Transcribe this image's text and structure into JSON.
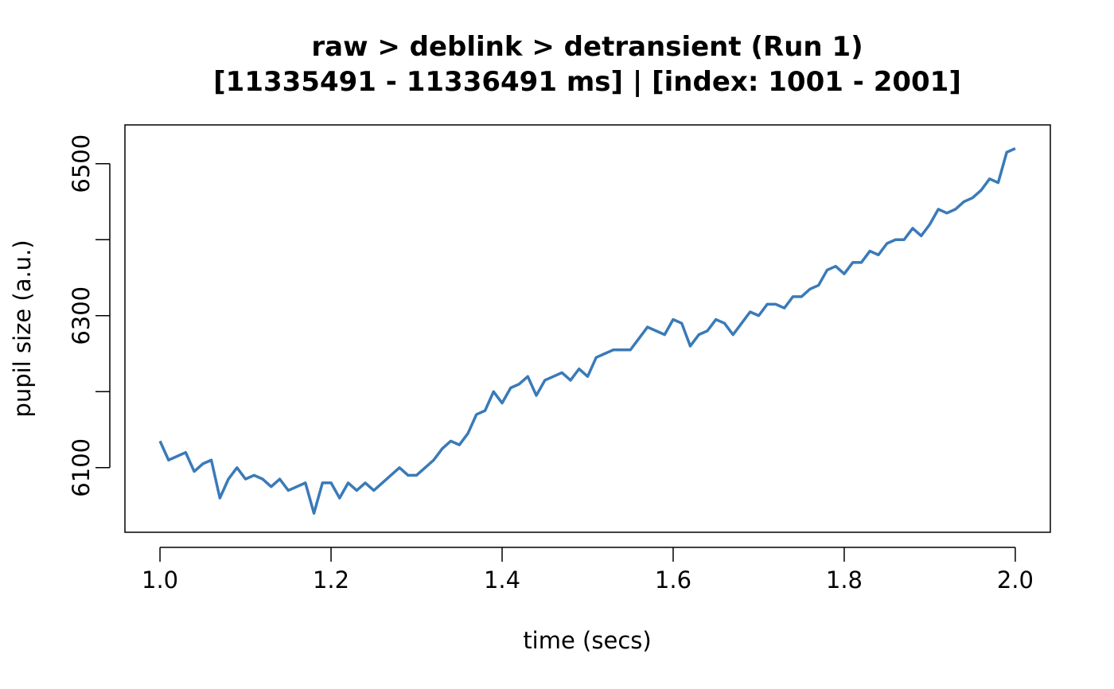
{
  "chart_data": {
    "type": "line",
    "title": "raw > deblink > detransient (Run 1)",
    "subtitle": "[11335491 - 11336491 ms] | [index: 1001 - 2001]",
    "x_label": "time (secs)",
    "y_label": "pupil size (a.u.)",
    "x": [
      1.0,
      1.01,
      1.02,
      1.03,
      1.04,
      1.05,
      1.06,
      1.07,
      1.08,
      1.09,
      1.1,
      1.11,
      1.12,
      1.13,
      1.14,
      1.15,
      1.16,
      1.17,
      1.18,
      1.19,
      1.2,
      1.21,
      1.22,
      1.23,
      1.24,
      1.25,
      1.26,
      1.27,
      1.28,
      1.29,
      1.3,
      1.31,
      1.32,
      1.33,
      1.34,
      1.35,
      1.36,
      1.37,
      1.38,
      1.39,
      1.4,
      1.41,
      1.42,
      1.43,
      1.44,
      1.45,
      1.46,
      1.47,
      1.48,
      1.49,
      1.5,
      1.51,
      1.52,
      1.53,
      1.54,
      1.55,
      1.56,
      1.57,
      1.58,
      1.59,
      1.6,
      1.61,
      1.62,
      1.63,
      1.64,
      1.65,
      1.66,
      1.67,
      1.68,
      1.69,
      1.7,
      1.71,
      1.72,
      1.73,
      1.74,
      1.75,
      1.76,
      1.77,
      1.78,
      1.79,
      1.8,
      1.81,
      1.82,
      1.83,
      1.84,
      1.85,
      1.86,
      1.87,
      1.88,
      1.89,
      1.9,
      1.91,
      1.92,
      1.93,
      1.94,
      1.95,
      1.96,
      1.97,
      1.98,
      1.99,
      2.0
    ],
    "series": [
      {
        "name": "pupil",
        "color": "#3a7ab8",
        "values": [
          6135,
          6110,
          6115,
          6120,
          6095,
          6105,
          6110,
          6060,
          6085,
          6100,
          6085,
          6090,
          6085,
          6075,
          6085,
          6070,
          6075,
          6080,
          6040,
          6080,
          6080,
          6060,
          6080,
          6070,
          6080,
          6070,
          6080,
          6090,
          6100,
          6090,
          6090,
          6100,
          6110,
          6125,
          6135,
          6130,
          6145,
          6170,
          6175,
          6200,
          6185,
          6205,
          6210,
          6220,
          6195,
          6215,
          6220,
          6225,
          6215,
          6230,
          6220,
          6245,
          6250,
          6255,
          6255,
          6255,
          6270,
          6285,
          6280,
          6275,
          6295,
          6290,
          6260,
          6275,
          6280,
          6295,
          6290,
          6275,
          6290,
          6305,
          6300,
          6315,
          6315,
          6310,
          6325,
          6325,
          6335,
          6340,
          6360,
          6365,
          6355,
          6370,
          6370,
          6385,
          6380,
          6395,
          6400,
          6400,
          6415,
          6405,
          6420,
          6440,
          6435,
          6440,
          6450,
          6455,
          6465,
          6480,
          6475,
          6515,
          6520
        ]
      }
    ],
    "xlim": [
      0.959,
      2.041
    ],
    "ylim": [
      6015,
      6551
    ],
    "xticks": [
      {
        "value": 1.0,
        "label": "1.0"
      },
      {
        "value": 1.2,
        "label": "1.2"
      },
      {
        "value": 1.4,
        "label": "1.4"
      },
      {
        "value": 1.6,
        "label": "1.6"
      },
      {
        "value": 1.8,
        "label": "1.8"
      },
      {
        "value": 2.0,
        "label": "2.0"
      }
    ],
    "yticks": [
      6100,
      6300,
      6500
    ],
    "yticks_unlabeled": [
      6200,
      6400
    ]
  }
}
